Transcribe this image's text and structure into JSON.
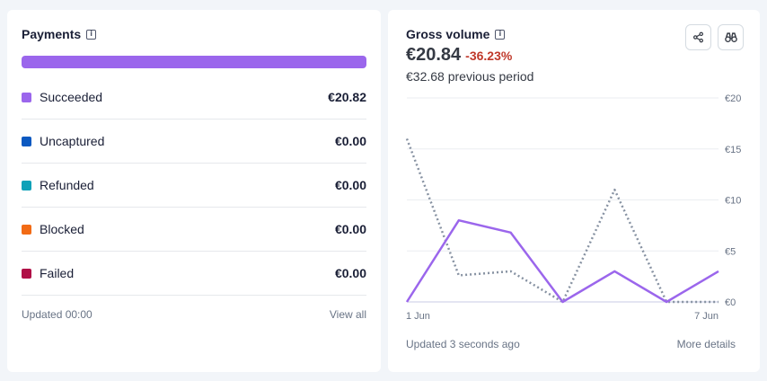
{
  "payments": {
    "title": "Payments",
    "bar_color": "#9b66ec",
    "rows": [
      {
        "label": "Succeeded",
        "value": "€20.82",
        "color": "#9b66ec"
      },
      {
        "label": "Uncaptured",
        "value": "€0.00",
        "color": "#0b59c1"
      },
      {
        "label": "Refunded",
        "value": "€0.00",
        "color": "#0fa1b8"
      },
      {
        "label": "Blocked",
        "value": "€0.00",
        "color": "#f26b15"
      },
      {
        "label": "Failed",
        "value": "€0.00",
        "color": "#b01047"
      }
    ],
    "updated": "Updated 00:00",
    "view_all": "View all"
  },
  "gross": {
    "title": "Gross volume",
    "amount": "€20.84",
    "delta": "-36.23%",
    "previous": "€32.68 previous period",
    "share_icon": "share-icon",
    "binoculars_icon": "binoculars-icon",
    "updated": "Updated 3 seconds ago",
    "more_details": "More details"
  },
  "chart_data": {
    "type": "line",
    "x": [
      "1 Jun",
      "",
      "",
      "",
      "",
      "",
      "7 Jun"
    ],
    "x_tick_labels": [
      "1 Jun",
      "7 Jun"
    ],
    "y_ticks": [
      "€0",
      "€5",
      "€10",
      "€15",
      "€20"
    ],
    "ylim": [
      0,
      20
    ],
    "series": [
      {
        "style": "solid",
        "color": "#9b66ec",
        "values": [
          0,
          8,
          6.8,
          0,
          3,
          0,
          3
        ]
      },
      {
        "style": "dotted",
        "color": "#8792a2",
        "values": [
          16,
          2.6,
          3,
          0,
          11,
          0,
          0
        ]
      }
    ],
    "grid": true
  }
}
